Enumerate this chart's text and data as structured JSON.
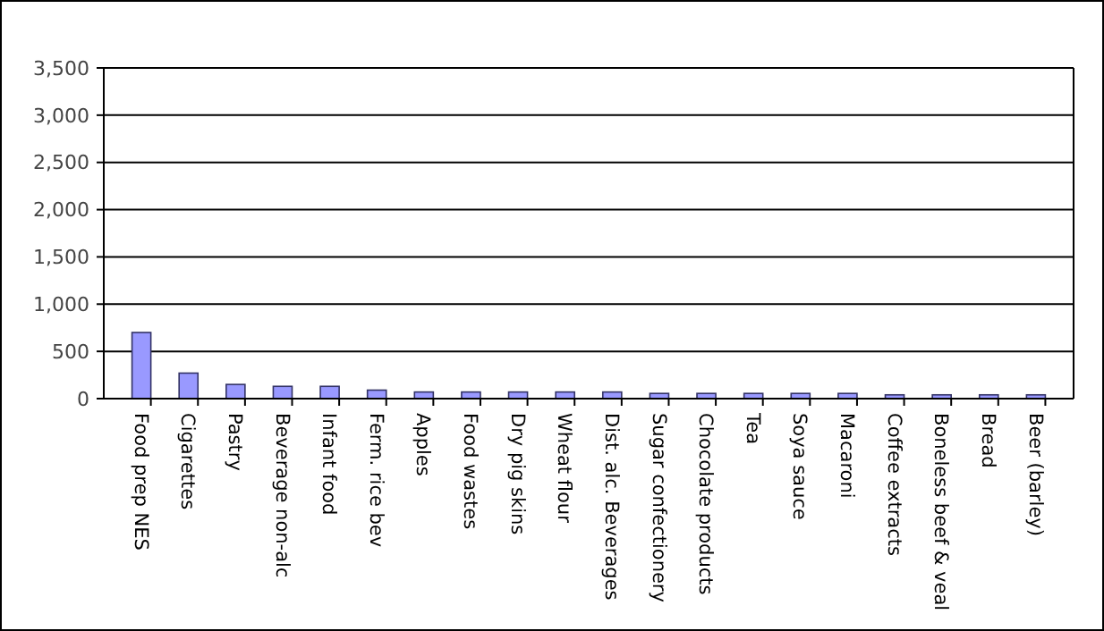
{
  "chart_data": {
    "type": "bar",
    "categories": [
      "Food prep NES",
      "Cigarettes",
      "Pastry",
      "Beverage non-alc",
      "Infant food",
      "Ferm. rice bev",
      "Apples",
      "Food wastes",
      "Dry pig skins",
      "Wheat flour",
      "Dist. alc. Beverages",
      "Sugar confectionery",
      "Chocolate products",
      "Tea",
      "Soya sauce",
      "Macaroni",
      "Coffee extracts",
      "Boneless beef & veal",
      "Bread",
      "Beer (barley)"
    ],
    "values": [
      700,
      270,
      150,
      130,
      130,
      90,
      70,
      70,
      70,
      70,
      70,
      55,
      55,
      55,
      55,
      55,
      40,
      40,
      40,
      40
    ],
    "color": "#9999ff",
    "ylim": [
      0,
      3500
    ],
    "yticks": [
      {
        "value": 0,
        "label": "0"
      },
      {
        "value": 500,
        "label": "500"
      },
      {
        "value": 1000,
        "label": "1,000"
      },
      {
        "value": 1500,
        "label": "1,500"
      },
      {
        "value": 2000,
        "label": "2,000"
      },
      {
        "value": 2500,
        "label": "2,500"
      },
      {
        "value": 3000,
        "label": "3,000"
      },
      {
        "value": 3500,
        "label": "3,500"
      }
    ],
    "grid": "y"
  }
}
